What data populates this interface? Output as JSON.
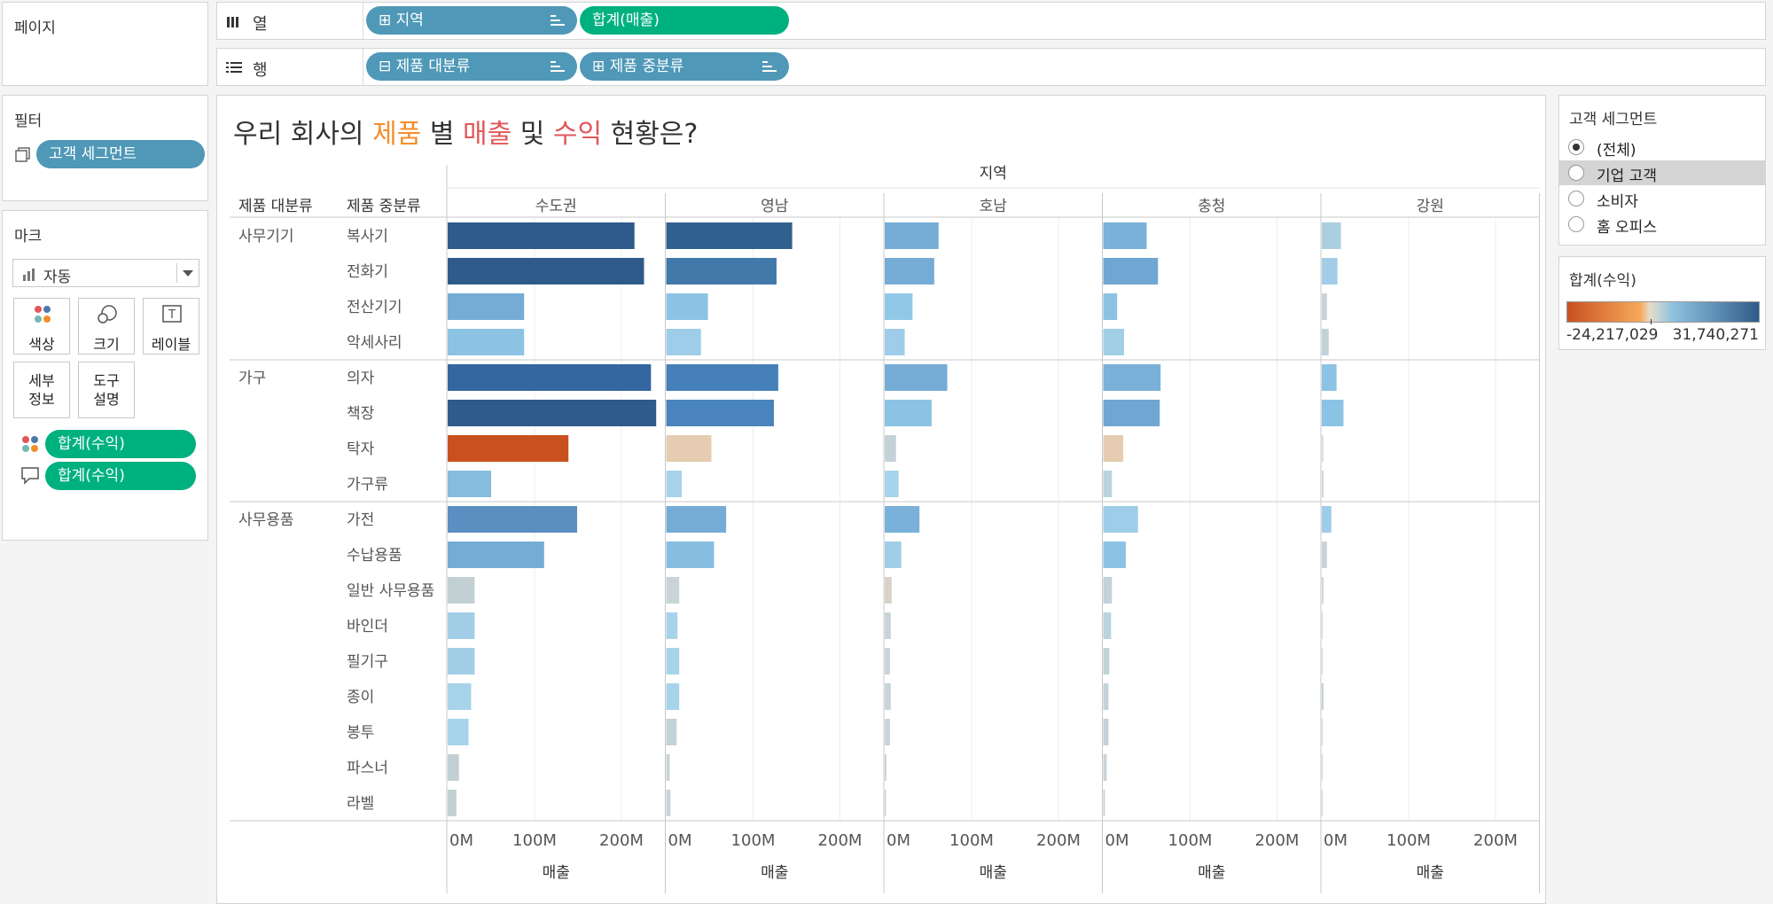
{
  "pages_panel": {
    "title": "페이지"
  },
  "columns_shelf": {
    "label": "열",
    "pills": [
      {
        "text": "⊞ 지역",
        "type": "dimension"
      },
      {
        "text": "합계(매출)",
        "type": "measure"
      }
    ]
  },
  "rows_shelf": {
    "label": "행",
    "pills": [
      {
        "text": "⊟ 제품 대분류",
        "type": "dimension"
      },
      {
        "text": "⊞ 제품 중분류",
        "type": "dimension"
      }
    ]
  },
  "filters_panel": {
    "title": "필터",
    "pill": "고객 세그먼트"
  },
  "marks_panel": {
    "title": "마크",
    "mark_type": "자동",
    "buttons": {
      "color": "색상",
      "size": "크기",
      "label": "레이블",
      "detail": "세부\n정보",
      "tooltip": "도구\n설명"
    },
    "fields": [
      {
        "role": "color",
        "text": "합계(수익)"
      },
      {
        "role": "tooltip",
        "text": "합계(수익)"
      }
    ]
  },
  "title": {
    "parts": [
      {
        "text": "우리 회사의 ",
        "color": "#333333"
      },
      {
        "text": "제품",
        "color": "#f28e2b"
      },
      {
        "text": " 별 ",
        "color": "#333333"
      },
      {
        "text": "매출",
        "color": "#e15759"
      },
      {
        "text": " 및 ",
        "color": "#333333"
      },
      {
        "text": "수익",
        "color": "#e15759"
      },
      {
        "text": " 현황은?",
        "color": "#333333"
      }
    ]
  },
  "segment_filter": {
    "title": "고객 세그먼트",
    "options": [
      "(전체)",
      "기업 고객",
      "소비자",
      "홈 오피스"
    ],
    "selected": "(전체)",
    "highlighted": "기업 고객"
  },
  "color_legend": {
    "title": "합계(수익)",
    "min_label": "-24,217,029",
    "max_label": "31,740,271",
    "colors": [
      "#c8511f",
      "#f7a85b",
      "#e6dcc8",
      "#8fc3e0",
      "#2e5b8a"
    ]
  },
  "chart_data": {
    "type": "bar",
    "orientation": "horizontal",
    "col_header_title": "지역",
    "row_headers": [
      "제품 대분류",
      "제품 중분류"
    ],
    "regions": [
      "수도권",
      "영남",
      "호남",
      "충청",
      "강원"
    ],
    "groups": [
      {
        "name": "사무기기",
        "items": [
          "복사기",
          "전화기",
          "전산기기",
          "악세사리"
        ]
      },
      {
        "name": "가구",
        "items": [
          "의자",
          "책장",
          "탁자",
          "가구류"
        ]
      },
      {
        "name": "사무용품",
        "items": [
          "가전",
          "수납용품",
          "일반 사무용품",
          "바인더",
          "필기구",
          "종이",
          "봉투",
          "파스너",
          "라벨"
        ]
      }
    ],
    "sales": [
      [
        215,
        145,
        62,
        50,
        22
      ],
      [
        226,
        127,
        57,
        63,
        18
      ],
      [
        88,
        48,
        32,
        16,
        6
      ],
      [
        88,
        40,
        23,
        24,
        8
      ],
      [
        234,
        129,
        72,
        66,
        17
      ],
      [
        240,
        124,
        54,
        65,
        25
      ],
      [
        139,
        52,
        13,
        23,
        2
      ],
      [
        50,
        18,
        16,
        10,
        2
      ],
      [
        149,
        69,
        40,
        40,
        11
      ],
      [
        111,
        55,
        19,
        26,
        6
      ],
      [
        31,
        15,
        8,
        10,
        2
      ],
      [
        31,
        13,
        7,
        9,
        1
      ],
      [
        31,
        15,
        6,
        7,
        1
      ],
      [
        27,
        15,
        7,
        6,
        2
      ],
      [
        24,
        12,
        6,
        6,
        0.5
      ],
      [
        13,
        4,
        2,
        4,
        0.5
      ],
      [
        10,
        5,
        1.5,
        2,
        0.3
      ]
    ],
    "bar_colors": [
      [
        "#2e5b8a",
        "#31628f",
        "#75acd6",
        "#79b1d8",
        "#abcfe0"
      ],
      [
        "#2e5b8a",
        "#4179aa",
        "#75acd6",
        "#6fa6d2",
        "#a2cde6"
      ],
      [
        "#75acd6",
        "#8cc3e4",
        "#91c8e6",
        "#8cc3e4",
        "#c9d4d8"
      ],
      [
        "#8cc3e4",
        "#9dcde8",
        "#9dcde8",
        "#a0cfe6",
        "#c3d2d8"
      ],
      [
        "#3466a0",
        "#4680b9",
        "#75acd6",
        "#79b1d8",
        "#8cc3e4"
      ],
      [
        "#2e5b8a",
        "#4a84bd",
        "#8cc3e4",
        "#6fa6d2",
        "#8cc3e4"
      ],
      [
        "#c8511f",
        "#e6ccb0",
        "#c3d2d8",
        "#e6ccb0",
        "#dddddd"
      ],
      [
        "#87bcde",
        "#a7d4ea",
        "#a7d4ea",
        "#b9d3df",
        "#d5d5d5"
      ],
      [
        "#5b8fc1",
        "#75acd6",
        "#79b1d8",
        "#9dcde8",
        "#9dcde8"
      ],
      [
        "#75acd6",
        "#86bde0",
        "#a2cde6",
        "#8cc3e4",
        "#c9d4d8"
      ],
      [
        "#c2d0d4",
        "#c9d4d8",
        "#d8d2c8",
        "#c3d2d8",
        "#d5d5d5"
      ],
      [
        "#a2cde6",
        "#a7d4ea",
        "#c9d4d8",
        "#b9d3df",
        "#d5d5d5"
      ],
      [
        "#a2cde6",
        "#a7d4ea",
        "#c9d4d8",
        "#c3d2d8",
        "#d5d5d5"
      ],
      [
        "#a7d4ea",
        "#a7d4ea",
        "#c9d4d8",
        "#c3d2d8",
        "#c3d2d8"
      ],
      [
        "#a7d4ea",
        "#c3d2d8",
        "#c9d4d8",
        "#c3d2d8",
        "#d5d5d5"
      ],
      [
        "#c2d0d4",
        "#c9d4d8",
        "#c9d4d8",
        "#c9d4d8",
        "#d5d5d5"
      ],
      [
        "#c2d0d4",
        "#c9d4d8",
        "#c9d4d8",
        "#c9d4d8",
        "#d5d5d5"
      ]
    ],
    "x_ticks": [
      0,
      100,
      200
    ],
    "x_tick_labels": [
      "0M",
      "100M",
      "200M"
    ],
    "xlim": [
      0,
      250
    ],
    "xlabel": "매출",
    "unit": "M"
  }
}
